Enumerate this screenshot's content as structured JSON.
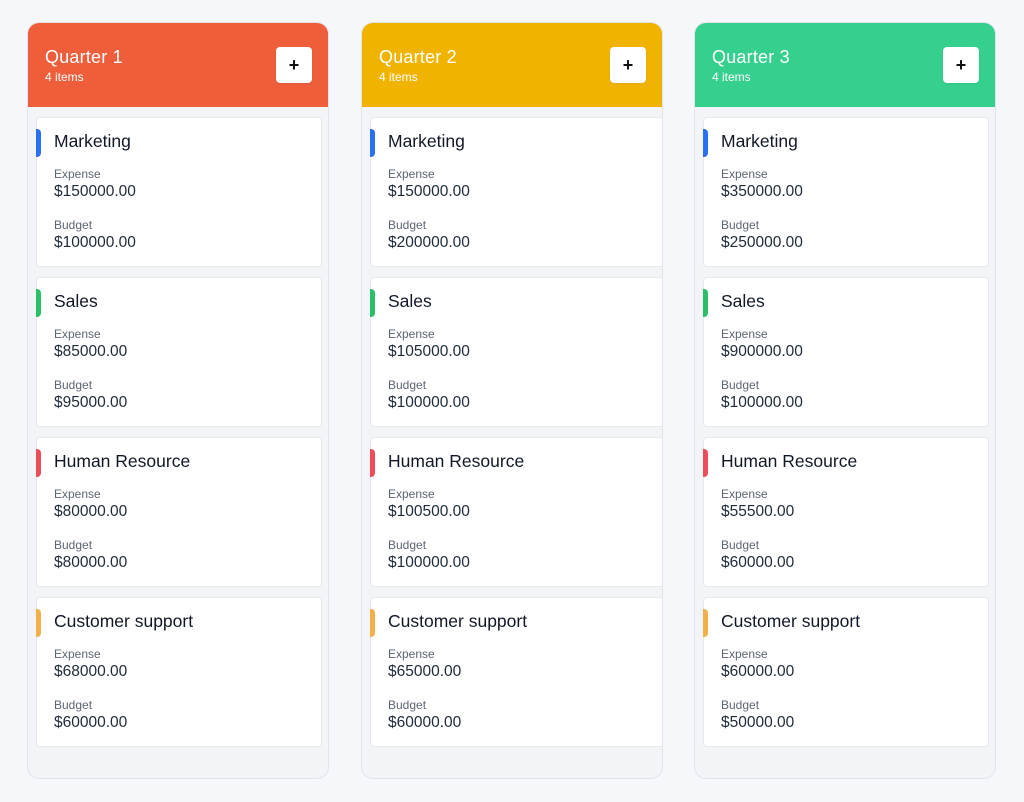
{
  "columns": [
    {
      "title": "Quarter 1",
      "count": "4 items",
      "color": "#ee5e3b",
      "cards": [
        {
          "title": "Marketing",
          "accent": "#2b6ff3",
          "expense_label": "Expense",
          "expense": "$150000.00",
          "budget_label": "Budget",
          "budget": "$100000.00"
        },
        {
          "title": "Sales",
          "accent": "#2bbf6a",
          "expense_label": "Expense",
          "expense": "$85000.00",
          "budget_label": "Budget",
          "budget": "$95000.00"
        },
        {
          "title": "Human Resource",
          "accent": "#ee4e5c",
          "expense_label": "Expense",
          "expense": "$80000.00",
          "budget_label": "Budget",
          "budget": "$80000.00"
        },
        {
          "title": "Customer support",
          "accent": "#f2b04a",
          "expense_label": "Expense",
          "expense": "$68000.00",
          "budget_label": "Budget",
          "budget": "$60000.00"
        }
      ]
    },
    {
      "title": "Quarter 2",
      "count": "4 items",
      "color": "#f0b400",
      "cards": [
        {
          "title": "Marketing",
          "accent": "#2b6ff3",
          "expense_label": "Expense",
          "expense": "$150000.00",
          "budget_label": "Budget",
          "budget": "$200000.00"
        },
        {
          "title": "Sales",
          "accent": "#2bbf6a",
          "expense_label": "Expense",
          "expense": "$105000.00",
          "budget_label": "Budget",
          "budget": "$100000.00"
        },
        {
          "title": "Human Resource",
          "accent": "#ee4e5c",
          "expense_label": "Expense",
          "expense": "$100500.00",
          "budget_label": "Budget",
          "budget": "$100000.00"
        },
        {
          "title": "Customer support",
          "accent": "#f2b04a",
          "expense_label": "Expense",
          "expense": "$65000.00",
          "budget_label": "Budget",
          "budget": "$60000.00"
        }
      ]
    },
    {
      "title": "Quarter 3",
      "count": "4 items",
      "color": "#36d08e",
      "cards": [
        {
          "title": "Marketing",
          "accent": "#2b6ff3",
          "expense_label": "Expense",
          "expense": "$350000.00",
          "budget_label": "Budget",
          "budget": "$250000.00"
        },
        {
          "title": "Sales",
          "accent": "#2bbf6a",
          "expense_label": "Expense",
          "expense": "$900000.00",
          "budget_label": "Budget",
          "budget": "$100000.00"
        },
        {
          "title": "Human Resource",
          "accent": "#ee4e5c",
          "expense_label": "Expense",
          "expense": "$55500.00",
          "budget_label": "Budget",
          "budget": "$60000.00"
        },
        {
          "title": "Customer support",
          "accent": "#f2b04a",
          "expense_label": "Expense",
          "expense": "$60000.00",
          "budget_label": "Budget",
          "budget": "$50000.00"
        }
      ]
    }
  ],
  "icons": {
    "add": "plus-icon"
  }
}
